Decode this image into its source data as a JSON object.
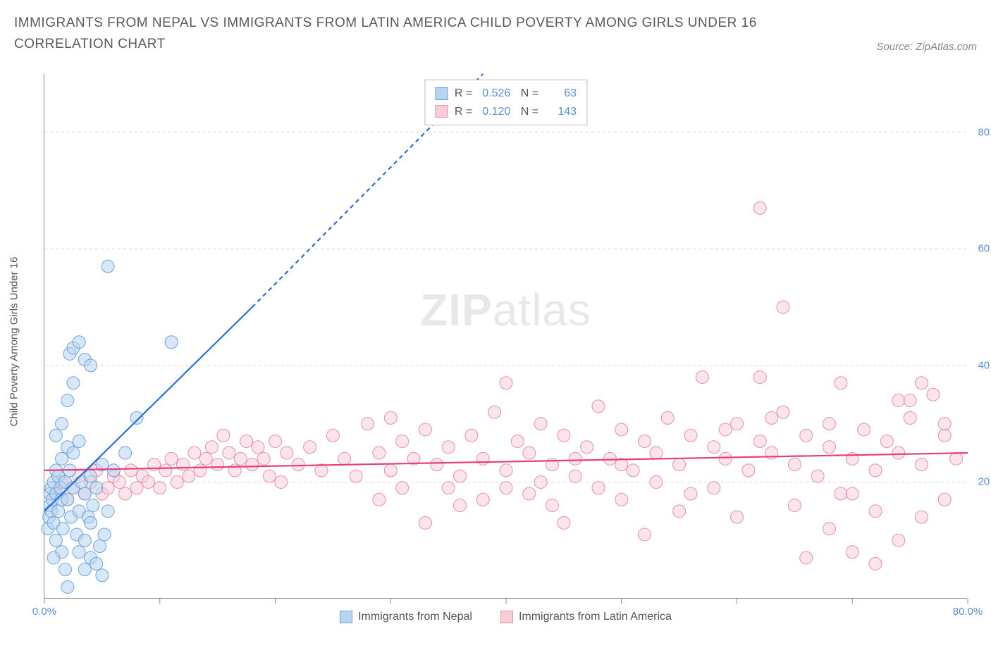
{
  "title": "IMMIGRANTS FROM NEPAL VS IMMIGRANTS FROM LATIN AMERICA CHILD POVERTY AMONG GIRLS UNDER 16 CORRELATION CHART",
  "source": "Source: ZipAtlas.com",
  "watermark": {
    "bold": "ZIP",
    "light": "atlas"
  },
  "y_axis_label": "Child Poverty Among Girls Under 16",
  "chart": {
    "type": "scatter",
    "xlim": [
      0,
      80
    ],
    "ylim": [
      0,
      90
    ],
    "x_ticks": [
      0,
      10,
      20,
      30,
      40,
      50,
      60,
      70,
      80
    ],
    "x_tick_labels": {
      "0": "0.0%",
      "80": "80.0%"
    },
    "y_gridlines": [
      20,
      40,
      60,
      80
    ],
    "y_tick_labels": {
      "20": "20.0%",
      "40": "40.0%",
      "60": "60.0%",
      "80": "80.0%"
    },
    "grid_color": "#d8d8d8",
    "grid_dash": "4,4",
    "background_color": "#ffffff",
    "marker_radius": 9,
    "marker_opacity": 0.55,
    "line_width": 2.2
  },
  "series": {
    "nepal": {
      "label": "Immigrants from Nepal",
      "color_fill": "#b8d4f0",
      "color_stroke": "#6ea3dd",
      "line_color": "#2a6fd6",
      "R": "0.526",
      "N": "63",
      "trend": {
        "x1": 0,
        "y1": 15,
        "x2": 18,
        "y2": 50
      },
      "trend_dash_ext": {
        "x1": 18,
        "y1": 50,
        "x2": 38,
        "y2": 90
      },
      "points": [
        [
          0.3,
          12
        ],
        [
          0.4,
          14
        ],
        [
          0.5,
          16
        ],
        [
          0.5,
          18
        ],
        [
          0.6,
          15
        ],
        [
          0.6,
          19
        ],
        [
          0.7,
          17
        ],
        [
          0.8,
          20
        ],
        [
          0.8,
          13
        ],
        [
          1.0,
          22
        ],
        [
          1.0,
          18
        ],
        [
          1.2,
          15
        ],
        [
          1.2,
          21
        ],
        [
          1.4,
          19
        ],
        [
          1.5,
          24
        ],
        [
          1.5,
          17
        ],
        [
          1.6,
          12
        ],
        [
          1.8,
          20
        ],
        [
          2.0,
          26
        ],
        [
          2.0,
          17
        ],
        [
          2.2,
          22
        ],
        [
          2.3,
          14
        ],
        [
          2.5,
          25
        ],
        [
          2.5,
          19
        ],
        [
          2.8,
          11
        ],
        [
          3.0,
          27
        ],
        [
          3.0,
          15
        ],
        [
          3.2,
          20
        ],
        [
          3.5,
          18
        ],
        [
          3.5,
          10
        ],
        [
          3.8,
          14
        ],
        [
          4.0,
          21
        ],
        [
          4.0,
          13
        ],
        [
          4.2,
          16
        ],
        [
          4.5,
          19
        ],
        [
          4.8,
          9
        ],
        [
          5.0,
          23
        ],
        [
          5.2,
          11
        ],
        [
          5.5,
          15
        ],
        [
          1.0,
          28
        ],
        [
          1.5,
          30
        ],
        [
          2.0,
          34
        ],
        [
          2.5,
          37
        ],
        [
          2.2,
          42
        ],
        [
          2.5,
          43
        ],
        [
          3.0,
          44
        ],
        [
          3.5,
          41
        ],
        [
          4.0,
          40
        ],
        [
          5.5,
          57
        ],
        [
          3.0,
          8
        ],
        [
          3.5,
          5
        ],
        [
          4.0,
          7
        ],
        [
          4.5,
          6
        ],
        [
          5.0,
          4
        ],
        [
          2.0,
          2
        ],
        [
          1.8,
          5
        ],
        [
          1.5,
          8
        ],
        [
          1.0,
          10
        ],
        [
          0.8,
          7
        ],
        [
          11.0,
          44
        ],
        [
          8.0,
          31
        ],
        [
          6.0,
          22
        ],
        [
          7.0,
          25
        ]
      ]
    },
    "latin": {
      "label": "Immigrants from Latin America",
      "color_fill": "#f8cdd8",
      "color_stroke": "#e98fa9",
      "line_color": "#e63e7a",
      "R": "0.120",
      "N": "143",
      "trend": {
        "x1": 0,
        "y1": 22,
        "x2": 80,
        "y2": 25
      },
      "points": [
        [
          1,
          18
        ],
        [
          1.5,
          20
        ],
        [
          2,
          17
        ],
        [
          2.5,
          19
        ],
        [
          3,
          21
        ],
        [
          3.5,
          18
        ],
        [
          4,
          20
        ],
        [
          4.5,
          22
        ],
        [
          5,
          18
        ],
        [
          5.5,
          19
        ],
        [
          6,
          21
        ],
        [
          6.5,
          20
        ],
        [
          7,
          18
        ],
        [
          7.5,
          22
        ],
        [
          8,
          19
        ],
        [
          8.5,
          21
        ],
        [
          9,
          20
        ],
        [
          9.5,
          23
        ],
        [
          10,
          19
        ],
        [
          10.5,
          22
        ],
        [
          11,
          24
        ],
        [
          11.5,
          20
        ],
        [
          12,
          23
        ],
        [
          12.5,
          21
        ],
        [
          13,
          25
        ],
        [
          13.5,
          22
        ],
        [
          14,
          24
        ],
        [
          14.5,
          26
        ],
        [
          15,
          23
        ],
        [
          15.5,
          28
        ],
        [
          16,
          25
        ],
        [
          16.5,
          22
        ],
        [
          17,
          24
        ],
        [
          17.5,
          27
        ],
        [
          18,
          23
        ],
        [
          18.5,
          26
        ],
        [
          19,
          24
        ],
        [
          19.5,
          21
        ],
        [
          20,
          27
        ],
        [
          20.5,
          20
        ],
        [
          21,
          25
        ],
        [
          22,
          23
        ],
        [
          23,
          26
        ],
        [
          24,
          22
        ],
        [
          25,
          28
        ],
        [
          26,
          24
        ],
        [
          27,
          21
        ],
        [
          28,
          30
        ],
        [
          29,
          25
        ],
        [
          30,
          22
        ],
        [
          30,
          31
        ],
        [
          31,
          27
        ],
        [
          32,
          24
        ],
        [
          33,
          29
        ],
        [
          34,
          23
        ],
        [
          35,
          26
        ],
        [
          36,
          21
        ],
        [
          37,
          28
        ],
        [
          38,
          24
        ],
        [
          39,
          32
        ],
        [
          40,
          22
        ],
        [
          41,
          27
        ],
        [
          42,
          25
        ],
        [
          43,
          30
        ],
        [
          44,
          23
        ],
        [
          45,
          28
        ],
        [
          46,
          21
        ],
        [
          47,
          26
        ],
        [
          48,
          33
        ],
        [
          49,
          24
        ],
        [
          50,
          29
        ],
        [
          51,
          22
        ],
        [
          52,
          27
        ],
        [
          53,
          25
        ],
        [
          54,
          31
        ],
        [
          55,
          23
        ],
        [
          56,
          28
        ],
        [
          57,
          38
        ],
        [
          58,
          26
        ],
        [
          59,
          24
        ],
        [
          60,
          30
        ],
        [
          61,
          22
        ],
        [
          62,
          27
        ],
        [
          63,
          25
        ],
        [
          64,
          32
        ],
        [
          65,
          23
        ],
        [
          66,
          28
        ],
        [
          67,
          21
        ],
        [
          68,
          26
        ],
        [
          69,
          37
        ],
        [
          69,
          18
        ],
        [
          70,
          24
        ],
        [
          71,
          29
        ],
        [
          72,
          22
        ],
        [
          73,
          27
        ],
        [
          74,
          25
        ],
        [
          75,
          31
        ],
        [
          76,
          23
        ],
        [
          77,
          35
        ],
        [
          78,
          28
        ],
        [
          79,
          24
        ],
        [
          40,
          37
        ],
        [
          45,
          13
        ],
        [
          50,
          17
        ],
        [
          55,
          15
        ],
        [
          52,
          11
        ],
        [
          58,
          19
        ],
        [
          60,
          14
        ],
        [
          62,
          38
        ],
        [
          65,
          16
        ],
        [
          68,
          12
        ],
        [
          70,
          18
        ],
        [
          72,
          15
        ],
        [
          74,
          34
        ],
        [
          76,
          14
        ],
        [
          78,
          17
        ],
        [
          48,
          19
        ],
        [
          35,
          19
        ],
        [
          38,
          17
        ],
        [
          42,
          18
        ],
        [
          44,
          16
        ],
        [
          62,
          67
        ],
        [
          64,
          50
        ],
        [
          33,
          13
        ],
        [
          36,
          16
        ],
        [
          29,
          17
        ],
        [
          31,
          19
        ],
        [
          72,
          6
        ],
        [
          66,
          7
        ],
        [
          70,
          8
        ],
        [
          74,
          10
        ],
        [
          76,
          37
        ],
        [
          78,
          30
        ],
        [
          75,
          34
        ],
        [
          68,
          30
        ],
        [
          63,
          31
        ],
        [
          59,
          29
        ],
        [
          56,
          18
        ],
        [
          53,
          20
        ],
        [
          50,
          23
        ],
        [
          46,
          24
        ],
        [
          43,
          20
        ],
        [
          40,
          19
        ]
      ]
    }
  },
  "legend_bottom": [
    {
      "key": "nepal"
    },
    {
      "key": "latin"
    }
  ]
}
